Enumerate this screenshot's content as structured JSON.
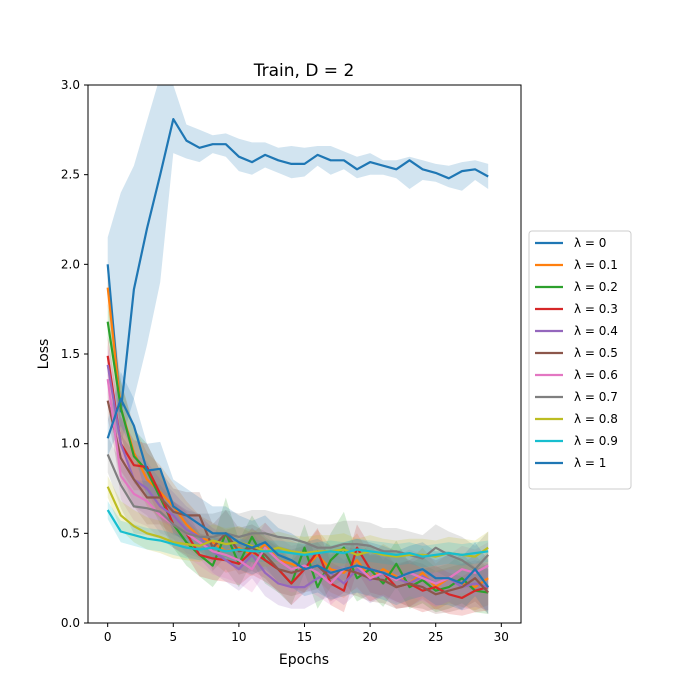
{
  "chart_data": {
    "type": "line",
    "title": "Train, D = 2",
    "xlabel": "Epochs",
    "ylabel": "Loss",
    "xlim": [
      -1.5,
      31.5
    ],
    "ylim": [
      0,
      3.0
    ],
    "xticks": [
      0,
      5,
      10,
      15,
      20,
      25,
      30
    ],
    "yticks": [
      0.0,
      0.5,
      1.0,
      1.5,
      2.0,
      2.5,
      3.0
    ],
    "xtick_labels": [
      "0",
      "5",
      "10",
      "15",
      "20",
      "25",
      "30"
    ],
    "ytick_labels": [
      "0.0",
      "0.5",
      "1.0",
      "1.5",
      "2.0",
      "2.5",
      "3.0"
    ],
    "grid": false,
    "legend_position": "center-right-outside",
    "x": [
      0,
      1,
      2,
      3,
      4,
      5,
      6,
      7,
      8,
      9,
      10,
      11,
      12,
      13,
      14,
      15,
      16,
      17,
      18,
      19,
      20,
      21,
      22,
      23,
      24,
      25,
      26,
      27,
      28,
      29
    ],
    "series": [
      {
        "name": "λ = 0",
        "color": "#1f77b4",
        "values": [
          2.0,
          1.18,
          1.86,
          2.2,
          2.5,
          2.81,
          2.69,
          2.65,
          2.67,
          2.67,
          2.6,
          2.57,
          2.61,
          2.58,
          2.56,
          2.56,
          2.61,
          2.58,
          2.58,
          2.53,
          2.57,
          2.55,
          2.53,
          2.58,
          2.53,
          2.51,
          2.48,
          2.52,
          2.53,
          2.49
        ],
        "upper": [
          2.15,
          2.4,
          2.55,
          2.8,
          3.05,
          3.0,
          2.78,
          2.75,
          2.72,
          2.73,
          2.7,
          2.68,
          2.68,
          2.65,
          2.66,
          2.65,
          2.66,
          2.66,
          2.63,
          2.6,
          2.62,
          2.58,
          2.58,
          2.6,
          2.58,
          2.56,
          2.55,
          2.57,
          2.58,
          2.56
        ],
        "lower": [
          1.85,
          1.0,
          1.25,
          1.55,
          1.9,
          2.62,
          2.59,
          2.57,
          2.62,
          2.6,
          2.52,
          2.5,
          2.54,
          2.51,
          2.48,
          2.49,
          2.55,
          2.5,
          2.53,
          2.48,
          2.5,
          2.5,
          2.48,
          2.42,
          2.47,
          2.46,
          2.43,
          2.41,
          2.47,
          2.42
        ]
      },
      {
        "name": "λ = 0.1",
        "color": "#ff7f0e",
        "values": [
          1.87,
          1.2,
          0.95,
          0.8,
          0.73,
          0.65,
          0.55,
          0.48,
          0.45,
          0.4,
          0.42,
          0.38,
          0.44,
          0.35,
          0.33,
          0.3,
          0.38,
          0.3,
          0.28,
          0.35,
          0.25,
          0.3,
          0.26,
          0.22,
          0.28,
          0.2,
          0.25,
          0.22,
          0.2,
          0.25
        ],
        "upper": [
          1.97,
          1.35,
          1.1,
          0.95,
          0.88,
          0.78,
          0.68,
          0.6,
          0.56,
          0.52,
          0.54,
          0.5,
          0.56,
          0.48,
          0.46,
          0.43,
          0.52,
          0.43,
          0.42,
          0.5,
          0.38,
          0.44,
          0.4,
          0.35,
          0.42,
          0.33,
          0.39,
          0.35,
          0.33,
          0.4
        ],
        "lower": [
          1.77,
          1.05,
          0.8,
          0.65,
          0.58,
          0.52,
          0.42,
          0.36,
          0.34,
          0.28,
          0.3,
          0.26,
          0.32,
          0.22,
          0.2,
          0.17,
          0.24,
          0.17,
          0.14,
          0.2,
          0.12,
          0.16,
          0.12,
          0.09,
          0.14,
          0.07,
          0.11,
          0.09,
          0.07,
          0.1
        ]
      },
      {
        "name": "λ = 0.2",
        "color": "#2ca02c",
        "values": [
          1.68,
          1.2,
          0.93,
          0.85,
          0.7,
          0.55,
          0.45,
          0.38,
          0.32,
          0.5,
          0.33,
          0.48,
          0.35,
          0.3,
          0.22,
          0.42,
          0.2,
          0.35,
          0.42,
          0.25,
          0.3,
          0.22,
          0.33,
          0.2,
          0.24,
          0.18,
          0.2,
          0.25,
          0.18,
          0.17
        ],
        "upper": [
          1.78,
          1.35,
          1.08,
          1.0,
          0.85,
          0.68,
          0.58,
          0.5,
          0.45,
          0.7,
          0.46,
          0.6,
          0.48,
          0.43,
          0.35,
          0.55,
          0.33,
          0.5,
          0.62,
          0.38,
          0.44,
          0.35,
          0.46,
          0.33,
          0.37,
          0.31,
          0.33,
          0.39,
          0.31,
          0.3
        ],
        "lower": [
          1.58,
          1.05,
          0.78,
          0.7,
          0.55,
          0.42,
          0.32,
          0.26,
          0.2,
          0.3,
          0.2,
          0.34,
          0.22,
          0.17,
          0.1,
          0.28,
          0.08,
          0.2,
          0.24,
          0.12,
          0.16,
          0.09,
          0.2,
          0.08,
          0.11,
          0.06,
          0.08,
          0.11,
          0.06,
          0.05
        ]
      },
      {
        "name": "λ = 0.3",
        "color": "#d62728",
        "values": [
          1.49,
          1.0,
          0.88,
          0.87,
          0.72,
          0.55,
          0.5,
          0.38,
          0.36,
          0.35,
          0.33,
          0.4,
          0.35,
          0.3,
          0.22,
          0.3,
          0.4,
          0.22,
          0.18,
          0.42,
          0.3,
          0.28,
          0.2,
          0.22,
          0.18,
          0.2,
          0.16,
          0.14,
          0.18,
          0.2
        ],
        "upper": [
          1.6,
          1.15,
          1.02,
          1.0,
          0.85,
          0.68,
          0.62,
          0.5,
          0.48,
          0.47,
          0.45,
          0.53,
          0.47,
          0.42,
          0.34,
          0.43,
          0.53,
          0.34,
          0.3,
          0.55,
          0.43,
          0.41,
          0.32,
          0.35,
          0.3,
          0.32,
          0.28,
          0.26,
          0.3,
          0.33
        ],
        "lower": [
          1.38,
          0.85,
          0.74,
          0.74,
          0.59,
          0.42,
          0.38,
          0.26,
          0.24,
          0.23,
          0.21,
          0.27,
          0.23,
          0.18,
          0.1,
          0.17,
          0.27,
          0.1,
          0.06,
          0.29,
          0.17,
          0.15,
          0.08,
          0.09,
          0.06,
          0.08,
          0.05,
          0.04,
          0.06,
          0.07
        ]
      },
      {
        "name": "λ = 0.4",
        "color": "#9467bd",
        "values": [
          1.44,
          1.0,
          0.8,
          0.75,
          0.65,
          0.6,
          0.52,
          0.48,
          0.4,
          0.35,
          0.3,
          0.38,
          0.28,
          0.22,
          0.2,
          0.2,
          0.25,
          0.28,
          0.22,
          0.3,
          0.24,
          0.28,
          0.25,
          0.22,
          0.26,
          0.22,
          0.25,
          0.2,
          0.22,
          0.2
        ],
        "upper": [
          1.55,
          1.15,
          0.95,
          0.9,
          0.8,
          0.73,
          0.65,
          0.6,
          0.53,
          0.48,
          0.43,
          0.51,
          0.41,
          0.35,
          0.33,
          0.33,
          0.38,
          0.41,
          0.35,
          0.43,
          0.37,
          0.41,
          0.38,
          0.35,
          0.39,
          0.35,
          0.38,
          0.33,
          0.35,
          0.33
        ],
        "lower": [
          1.33,
          0.85,
          0.65,
          0.6,
          0.5,
          0.47,
          0.39,
          0.36,
          0.28,
          0.23,
          0.18,
          0.25,
          0.15,
          0.1,
          0.08,
          0.08,
          0.12,
          0.15,
          0.1,
          0.17,
          0.11,
          0.15,
          0.12,
          0.09,
          0.13,
          0.09,
          0.12,
          0.07,
          0.09,
          0.07
        ]
      },
      {
        "name": "λ = 0.5",
        "color": "#8c564b",
        "values": [
          1.24,
          0.92,
          0.8,
          0.7,
          0.7,
          0.62,
          0.6,
          0.6,
          0.42,
          0.5,
          0.4,
          0.42,
          0.38,
          0.3,
          0.28,
          0.3,
          0.32,
          0.25,
          0.3,
          0.28,
          0.25,
          0.24,
          0.2,
          0.22,
          0.2,
          0.16,
          0.18,
          0.2,
          0.25,
          0.17
        ],
        "upper": [
          1.34,
          1.05,
          0.95,
          0.85,
          0.85,
          0.75,
          0.73,
          0.73,
          0.55,
          0.63,
          0.53,
          0.55,
          0.51,
          0.43,
          0.41,
          0.43,
          0.45,
          0.38,
          0.43,
          0.41,
          0.38,
          0.37,
          0.33,
          0.35,
          0.33,
          0.29,
          0.31,
          0.33,
          0.38,
          0.3
        ],
        "lower": [
          1.14,
          0.79,
          0.65,
          0.55,
          0.55,
          0.49,
          0.47,
          0.47,
          0.29,
          0.37,
          0.27,
          0.29,
          0.25,
          0.17,
          0.15,
          0.17,
          0.19,
          0.12,
          0.17,
          0.15,
          0.12,
          0.11,
          0.08,
          0.09,
          0.08,
          0.05,
          0.06,
          0.08,
          0.12,
          0.05
        ]
      },
      {
        "name": "λ = 0.6",
        "color": "#e377c2",
        "values": [
          1.36,
          0.82,
          0.72,
          0.68,
          0.6,
          0.55,
          0.5,
          0.45,
          0.4,
          0.38,
          0.35,
          0.3,
          0.42,
          0.35,
          0.3,
          0.32,
          0.28,
          0.22,
          0.3,
          0.32,
          0.25,
          0.28,
          0.24,
          0.28,
          0.25,
          0.22,
          0.25,
          0.3,
          0.28,
          0.32
        ],
        "upper": [
          1.46,
          0.95,
          0.87,
          0.82,
          0.73,
          0.68,
          0.63,
          0.58,
          0.53,
          0.51,
          0.48,
          0.43,
          0.56,
          0.48,
          0.43,
          0.45,
          0.41,
          0.35,
          0.43,
          0.45,
          0.38,
          0.41,
          0.37,
          0.41,
          0.38,
          0.35,
          0.38,
          0.43,
          0.41,
          0.45
        ],
        "lower": [
          1.26,
          0.69,
          0.57,
          0.54,
          0.47,
          0.42,
          0.37,
          0.32,
          0.27,
          0.25,
          0.22,
          0.17,
          0.28,
          0.22,
          0.17,
          0.19,
          0.15,
          0.1,
          0.17,
          0.19,
          0.12,
          0.15,
          0.11,
          0.15,
          0.12,
          0.09,
          0.12,
          0.17,
          0.15,
          0.19
        ]
      },
      {
        "name": "λ = 0.7",
        "color": "#7f7f7f",
        "values": [
          0.94,
          0.77,
          0.65,
          0.64,
          0.62,
          0.55,
          0.5,
          0.48,
          0.48,
          0.5,
          0.48,
          0.5,
          0.5,
          0.48,
          0.47,
          0.45,
          0.42,
          0.42,
          0.44,
          0.44,
          0.43,
          0.4,
          0.4,
          0.38,
          0.36,
          0.42,
          0.38,
          0.35,
          0.3,
          0.38
        ],
        "upper": [
          1.04,
          0.9,
          0.8,
          0.79,
          0.77,
          0.68,
          0.63,
          0.61,
          0.61,
          0.63,
          0.61,
          0.63,
          0.63,
          0.61,
          0.6,
          0.58,
          0.55,
          0.55,
          0.57,
          0.57,
          0.56,
          0.53,
          0.53,
          0.51,
          0.49,
          0.55,
          0.51,
          0.48,
          0.43,
          0.51
        ],
        "lower": [
          0.84,
          0.64,
          0.5,
          0.49,
          0.47,
          0.42,
          0.37,
          0.35,
          0.35,
          0.37,
          0.35,
          0.37,
          0.37,
          0.35,
          0.34,
          0.32,
          0.29,
          0.29,
          0.31,
          0.31,
          0.3,
          0.27,
          0.27,
          0.25,
          0.23,
          0.29,
          0.25,
          0.22,
          0.17,
          0.25
        ]
      },
      {
        "name": "λ = 0.8",
        "color": "#bcbd22",
        "values": [
          0.76,
          0.6,
          0.54,
          0.5,
          0.48,
          0.45,
          0.44,
          0.43,
          0.46,
          0.44,
          0.45,
          0.43,
          0.4,
          0.42,
          0.4,
          0.39,
          0.4,
          0.4,
          0.41,
          0.38,
          0.4,
          0.38,
          0.37,
          0.38,
          0.38,
          0.37,
          0.39,
          0.38,
          0.37,
          0.42
        ],
        "upper": [
          0.82,
          0.68,
          0.63,
          0.59,
          0.57,
          0.54,
          0.53,
          0.52,
          0.55,
          0.53,
          0.54,
          0.52,
          0.49,
          0.51,
          0.49,
          0.48,
          0.49,
          0.49,
          0.5,
          0.47,
          0.49,
          0.47,
          0.46,
          0.47,
          0.47,
          0.46,
          0.48,
          0.47,
          0.46,
          0.51
        ],
        "lower": [
          0.7,
          0.52,
          0.45,
          0.41,
          0.39,
          0.36,
          0.35,
          0.34,
          0.37,
          0.35,
          0.36,
          0.34,
          0.31,
          0.33,
          0.31,
          0.3,
          0.31,
          0.31,
          0.32,
          0.29,
          0.31,
          0.29,
          0.28,
          0.29,
          0.29,
          0.28,
          0.3,
          0.29,
          0.28,
          0.33
        ]
      },
      {
        "name": "λ = 0.9",
        "color": "#17becf",
        "values": [
          0.63,
          0.51,
          0.49,
          0.47,
          0.46,
          0.44,
          0.42,
          0.41,
          0.42,
          0.4,
          0.41,
          0.4,
          0.4,
          0.4,
          0.39,
          0.38,
          0.39,
          0.4,
          0.39,
          0.41,
          0.4,
          0.39,
          0.38,
          0.39,
          0.37,
          0.38,
          0.39,
          0.38,
          0.39,
          0.4
        ],
        "upper": [
          0.68,
          0.57,
          0.55,
          0.53,
          0.52,
          0.5,
          0.48,
          0.47,
          0.48,
          0.46,
          0.47,
          0.46,
          0.46,
          0.46,
          0.45,
          0.44,
          0.45,
          0.46,
          0.45,
          0.47,
          0.46,
          0.45,
          0.44,
          0.45,
          0.43,
          0.44,
          0.45,
          0.44,
          0.45,
          0.46
        ],
        "lower": [
          0.58,
          0.45,
          0.43,
          0.41,
          0.4,
          0.38,
          0.36,
          0.35,
          0.36,
          0.34,
          0.35,
          0.34,
          0.34,
          0.34,
          0.33,
          0.32,
          0.33,
          0.34,
          0.33,
          0.35,
          0.34,
          0.33,
          0.32,
          0.33,
          0.31,
          0.32,
          0.33,
          0.32,
          0.33,
          0.34
        ]
      },
      {
        "name": "λ = 1",
        "color": "#1f77b4",
        "values": [
          1.03,
          1.25,
          1.1,
          0.85,
          0.86,
          0.65,
          0.6,
          0.55,
          0.5,
          0.5,
          0.45,
          0.42,
          0.45,
          0.38,
          0.35,
          0.3,
          0.32,
          0.28,
          0.3,
          0.32,
          0.3,
          0.28,
          0.25,
          0.28,
          0.3,
          0.25,
          0.25,
          0.22,
          0.3,
          0.2
        ],
        "upper": [
          1.13,
          1.4,
          1.25,
          1.0,
          1.01,
          0.8,
          0.75,
          0.7,
          0.65,
          0.65,
          0.6,
          0.57,
          0.6,
          0.53,
          0.5,
          0.45,
          0.47,
          0.43,
          0.45,
          0.47,
          0.45,
          0.43,
          0.4,
          0.43,
          0.45,
          0.4,
          0.4,
          0.37,
          0.45,
          0.35
        ],
        "lower": [
          0.93,
          1.1,
          0.95,
          0.7,
          0.71,
          0.5,
          0.45,
          0.4,
          0.35,
          0.35,
          0.3,
          0.27,
          0.3,
          0.23,
          0.2,
          0.15,
          0.17,
          0.13,
          0.15,
          0.17,
          0.15,
          0.13,
          0.1,
          0.13,
          0.15,
          0.1,
          0.1,
          0.07,
          0.15,
          0.05
        ]
      }
    ]
  }
}
